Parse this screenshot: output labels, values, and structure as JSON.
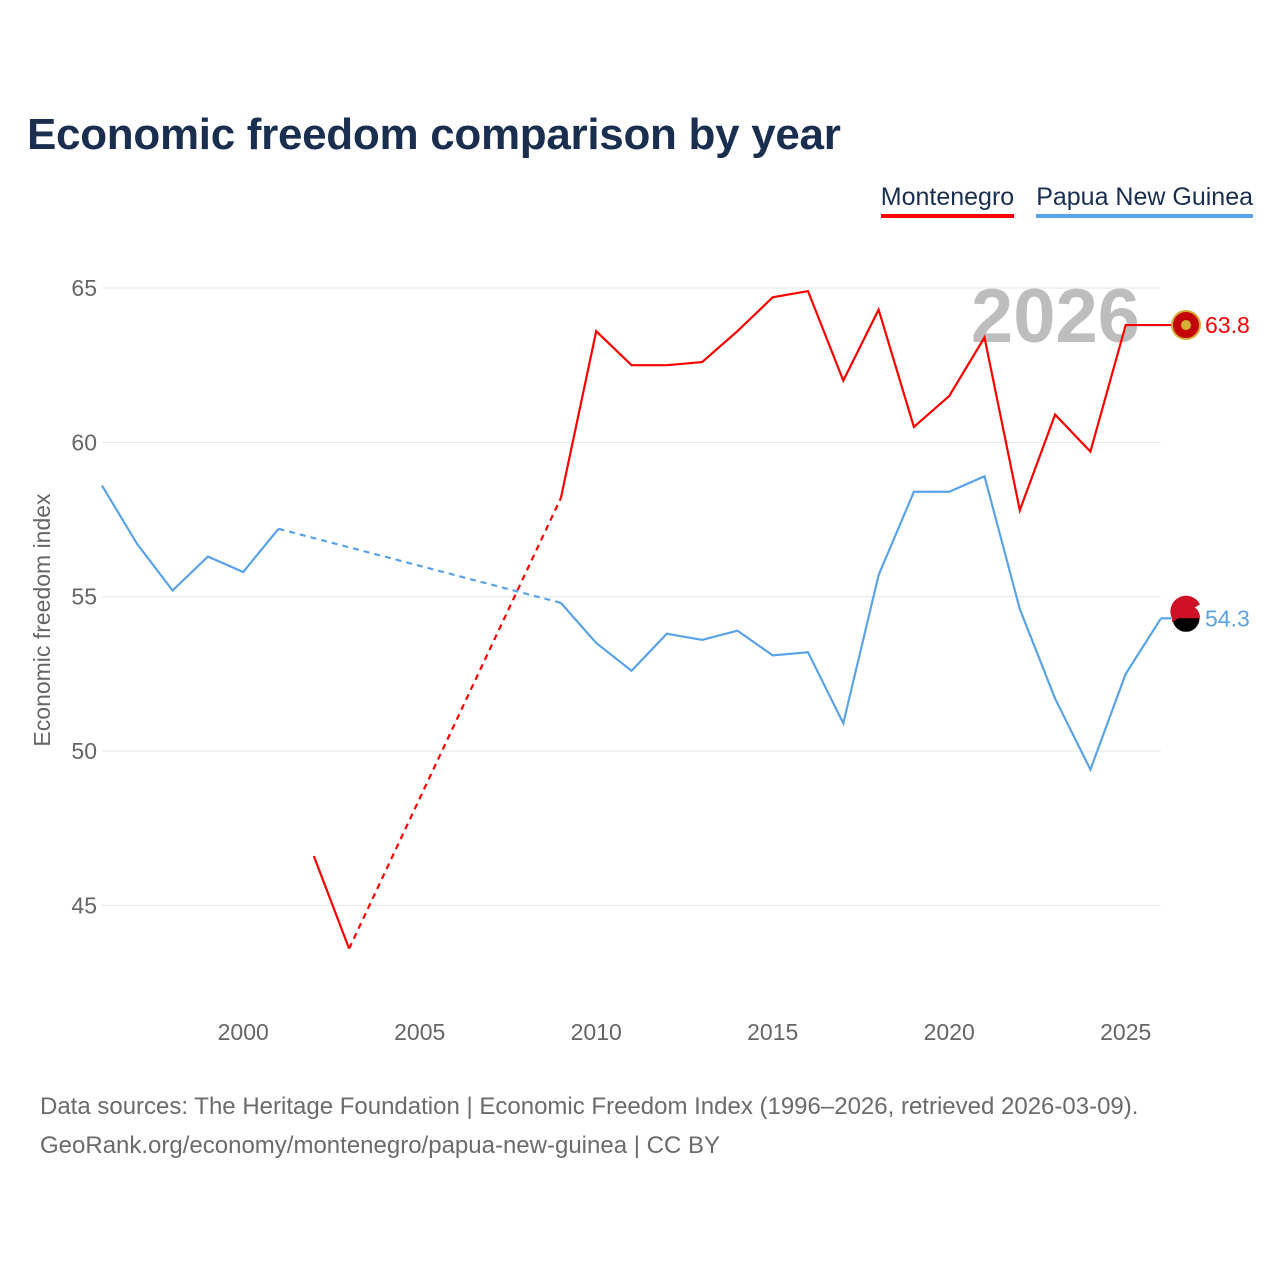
{
  "title": "Economic freedom comparison by year",
  "legend": [
    {
      "label": "Montenegro",
      "color": "#ff0000"
    },
    {
      "label": "Papua New Guinea",
      "color": "#5ba3e8"
    }
  ],
  "footer": {
    "line1": "Data sources: The Heritage Foundation | Economic Freedom Index (1996–2026, retrieved 2026-03-09).",
    "line2": "GeoRank.org/economy/montenegro/papua-new-guinea | CC BY"
  },
  "chart_data": {
    "type": "line",
    "title": "Economic freedom comparison by year",
    "xlabel": "",
    "ylabel": "Economic freedom index",
    "xlim": [
      1996,
      2026
    ],
    "ylim": [
      42,
      67
    ],
    "grid": true,
    "legend_placement": "top-right",
    "year_watermark": "2026",
    "x_ticks": [
      "2000",
      "2005",
      "2010",
      "2015",
      "2020",
      "2025"
    ],
    "y_ticks": [
      "45",
      "50",
      "55",
      "60",
      "65"
    ],
    "x": [
      1996,
      1997,
      1998,
      1999,
      2000,
      2001,
      2002,
      2003,
      2004,
      2005,
      2006,
      2007,
      2008,
      2009,
      2010,
      2011,
      2012,
      2013,
      2014,
      2015,
      2016,
      2017,
      2018,
      2019,
      2020,
      2021,
      2022,
      2023,
      2024,
      2025,
      2026
    ],
    "series": [
      {
        "name": "Montenegro",
        "color": "#ff0000",
        "end_label": "63.8",
        "values": [
          null,
          null,
          null,
          null,
          null,
          null,
          46.6,
          43.6,
          null,
          null,
          null,
          null,
          null,
          58.2,
          63.6,
          62.5,
          62.5,
          62.6,
          63.6,
          64.7,
          64.9,
          62.0,
          64.3,
          60.5,
          61.5,
          63.4,
          57.8,
          60.9,
          59.7,
          63.8,
          63.8
        ]
      },
      {
        "name": "Papua New Guinea",
        "color": "#5ba3e8",
        "end_label": "54.3",
        "values": [
          58.6,
          56.7,
          55.2,
          56.3,
          55.8,
          57.2,
          null,
          null,
          null,
          null,
          null,
          null,
          null,
          54.8,
          53.5,
          52.6,
          53.8,
          53.6,
          53.9,
          53.1,
          53.2,
          50.9,
          55.7,
          58.4,
          58.4,
          58.9,
          54.6,
          51.7,
          49.4,
          52.5,
          54.3
        ]
      }
    ]
  }
}
